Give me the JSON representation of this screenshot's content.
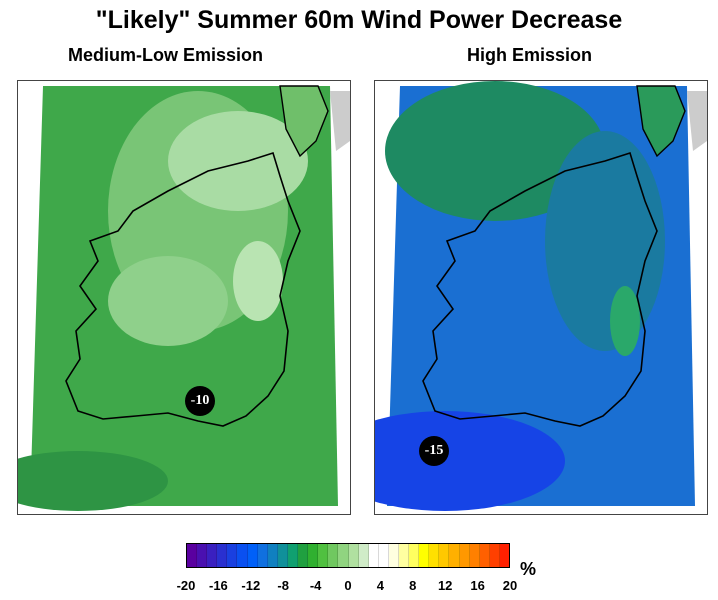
{
  "title": "\"Likely\" Summer 60m Wind Power Decrease",
  "panels": [
    {
      "title": "Medium-Low Emission",
      "marker_label": "-10",
      "fill_color": "#4bb04b",
      "mottle_color": "#93d48f",
      "light_color": "#c8ecc4"
    },
    {
      "title": "High Emission",
      "marker_label": "-15",
      "fill_color": "#1f5ce0",
      "mottle_color": "#1f8f5a",
      "light_color": "#2fb56a"
    }
  ],
  "colorbar": {
    "unit": "%",
    "tick_labels": [
      "-20",
      "-16",
      "-12",
      "-8",
      "-4",
      "0",
      "4",
      "8",
      "12",
      "16",
      "20"
    ],
    "colors": [
      "#5a00a0",
      "#4a10b0",
      "#3a20c0",
      "#2a30d0",
      "#1a40e0",
      "#0a50f0",
      "#0060f8",
      "#1070e0",
      "#1080c0",
      "#10909a",
      "#10a070",
      "#20a040",
      "#30b030",
      "#50c040",
      "#70c860",
      "#90d480",
      "#b0e0a0",
      "#d0ecc8",
      "#ffffff",
      "#ffffff",
      "#ffffe0",
      "#ffffa0",
      "#ffff60",
      "#ffff00",
      "#ffe000",
      "#ffc800",
      "#ffb000",
      "#ff9800",
      "#ff8000",
      "#ff6000",
      "#ff4000",
      "#ff2000"
    ]
  }
}
